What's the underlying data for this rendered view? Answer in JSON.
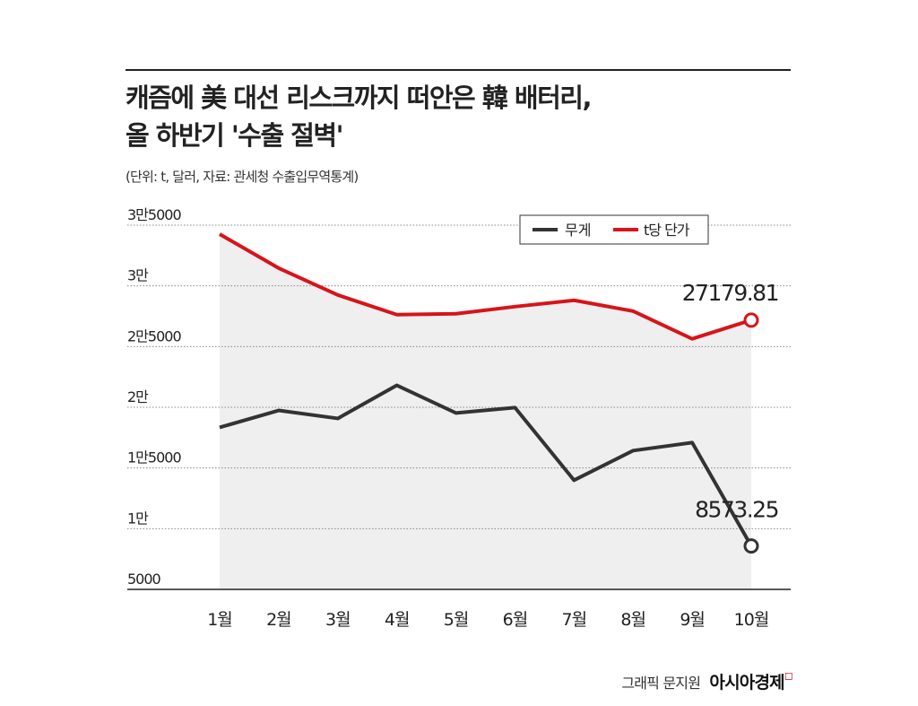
{
  "title_lines": [
    "캐즘에 美 대선 리스크까지 떠안은 韓 배터리,",
    "올 하반기 '수출 절벽'"
  ],
  "subtitle": "(단위: t, 달러, 자료: 관세청 수출입무역통계)",
  "credit": {
    "text": "그래픽 문지원",
    "brand": "아시아경제"
  },
  "chart_data": {
    "type": "line",
    "categories": [
      "1월",
      "2월",
      "3월",
      "4월",
      "5월",
      "6월",
      "7월",
      "8월",
      "9월",
      "10월"
    ],
    "ylim": [
      5000,
      35000
    ],
    "yticks": [
      5000,
      10000,
      15000,
      20000,
      25000,
      30000,
      35000
    ],
    "ytick_labels": [
      "5000",
      "1만",
      "1만5000",
      "2만",
      "2만5000",
      "3만",
      "3만5000"
    ],
    "legend_position": "top-right",
    "grid": true,
    "series": [
      {
        "name": "무게",
        "color": "#333333",
        "values": [
          18340,
          19740,
          19080,
          21810,
          19530,
          19970,
          13990,
          16430,
          17090,
          8573.25
        ],
        "end_label": "8573.25"
      },
      {
        "name": "t당 단가",
        "color": "#d7141a",
        "values": [
          34260,
          31460,
          29250,
          27630,
          27700,
          28290,
          28810,
          27920,
          25640,
          27179.81
        ],
        "end_label": "27179.81"
      }
    ]
  }
}
